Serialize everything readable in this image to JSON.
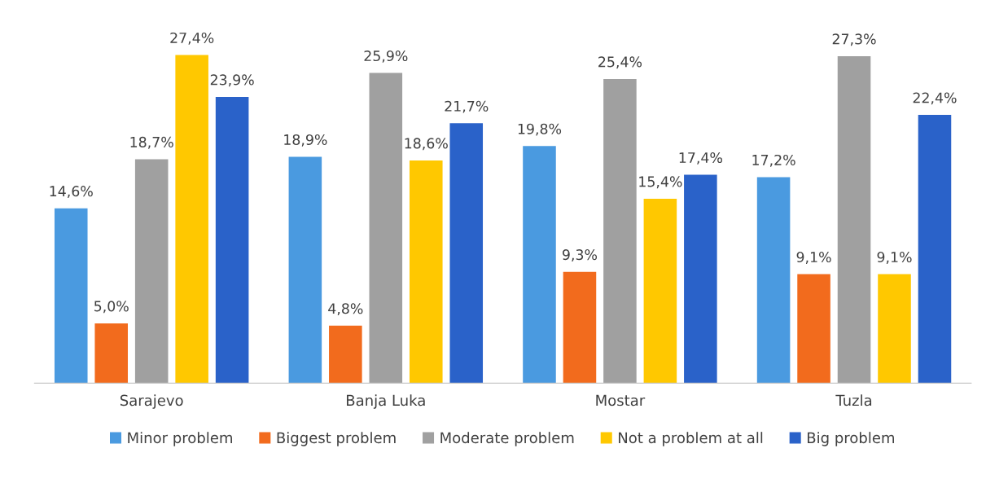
{
  "chart_data": {
    "type": "bar",
    "categories": [
      "Sarajevo",
      "Banja Luka",
      "Mostar",
      "Tuzla"
    ],
    "series": [
      {
        "name": "Minor problem",
        "color": "#4a9ae0",
        "values": [
          14.6,
          18.9,
          19.8,
          17.2
        ],
        "value_labels": [
          "14,6%",
          "18,9%",
          "19,8%",
          "17,2%"
        ]
      },
      {
        "name": "Biggest problem",
        "color": "#f26b1d",
        "values": [
          5.0,
          4.8,
          9.3,
          9.1
        ],
        "value_labels": [
          "5,0%",
          "4,8%",
          "9,3%",
          "9,1%"
        ]
      },
      {
        "name": "Moderate problem",
        "color": "#a0a0a0",
        "values": [
          18.7,
          25.9,
          25.4,
          27.3
        ],
        "value_labels": [
          "18,7%",
          "25,9%",
          "25,4%",
          "27,3%"
        ]
      },
      {
        "name": "Not a problem at all",
        "color": "#ffc800",
        "values": [
          27.4,
          18.6,
          15.4,
          9.1
        ],
        "value_labels": [
          "27,4%",
          "18,6%",
          "15,4%",
          "9,1%"
        ]
      },
      {
        "name": "Big problem",
        "color": "#2a62c9",
        "values": [
          23.9,
          21.7,
          17.4,
          22.4
        ],
        "value_labels": [
          "23,9%",
          "21,7%",
          "17,4%",
          "22,4%"
        ]
      }
    ],
    "legend": "bottom",
    "grid": false
  }
}
